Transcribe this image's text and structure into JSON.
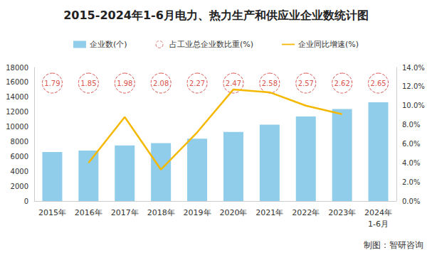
{
  "chart_data": {
    "type": "bar",
    "title": "2015-2024年1-6月电力、热力生产和供应业企业数统计图",
    "categories": [
      "2015年",
      "2016年",
      "2017年",
      "2018年",
      "2019年",
      "2020年",
      "2021年",
      "2022年",
      "2023年",
      "2024年\n1-6月"
    ],
    "series": [
      {
        "name": "企业数(个)",
        "type": "bar",
        "color": "#8fcdea",
        "values": [
          6600,
          6800,
          7500,
          7800,
          8400,
          9300,
          10300,
          11400,
          12400,
          13300
        ]
      },
      {
        "name": "占工业总企业数比重(%)",
        "type": "scatter",
        "marker": "circle",
        "line_style": "dashed",
        "color": "#d9534f",
        "values": [
          1.79,
          1.85,
          1.98,
          2.08,
          2.27,
          2.47,
          2.58,
          2.57,
          2.62,
          2.65
        ]
      },
      {
        "name": "企业同比增速(%)",
        "type": "line",
        "axis": "y2",
        "color": "#f5b800",
        "values": [
          null,
          4.0,
          8.8,
          3.3,
          7.2,
          11.7,
          11.4,
          10.0,
          9.1,
          null
        ]
      }
    ],
    "ylim": [
      0,
      18000
    ],
    "yticks": [
      0,
      2000,
      4000,
      6000,
      8000,
      10000,
      12000,
      14000,
      16000,
      18000
    ],
    "y2lim": [
      0,
      14
    ],
    "y2ticks": [
      {
        "value": 0,
        "label": "0.0%"
      },
      {
        "value": 2,
        "label": "2.0%"
      },
      {
        "value": 4,
        "label": "4.0%"
      },
      {
        "value": 6,
        "label": "6.0%"
      },
      {
        "value": 8,
        "label": "8.0%"
      },
      {
        "value": 10,
        "label": "10.0%"
      },
      {
        "value": 12,
        "label": "12.0%"
      },
      {
        "value": 14,
        "label": "14.0%"
      }
    ],
    "legend": "top",
    "grid": false,
    "annotations": [
      "制图：智研咨询"
    ]
  }
}
